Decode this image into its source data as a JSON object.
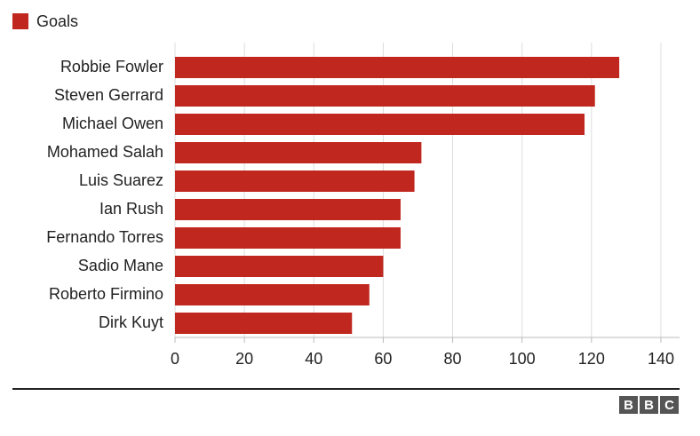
{
  "chart_data": {
    "type": "bar",
    "orientation": "horizontal",
    "legend": "Goals",
    "color": "#c0271e",
    "categories": [
      "Robbie Fowler",
      "Steven Gerrard",
      "Michael Owen",
      "Mohamed Salah",
      "Luis Suarez",
      "Ian Rush",
      "Fernando Torres",
      "Sadio Mane",
      "Roberto Firmino",
      "Dirk Kuyt"
    ],
    "values": [
      128,
      121,
      118,
      71,
      69,
      65,
      65,
      60,
      56,
      51
    ],
    "xlim": [
      0,
      145
    ],
    "xticks": [
      0,
      20,
      40,
      60,
      80,
      100,
      120,
      140
    ],
    "grid": true
  },
  "logo": [
    "B",
    "B",
    "C"
  ]
}
